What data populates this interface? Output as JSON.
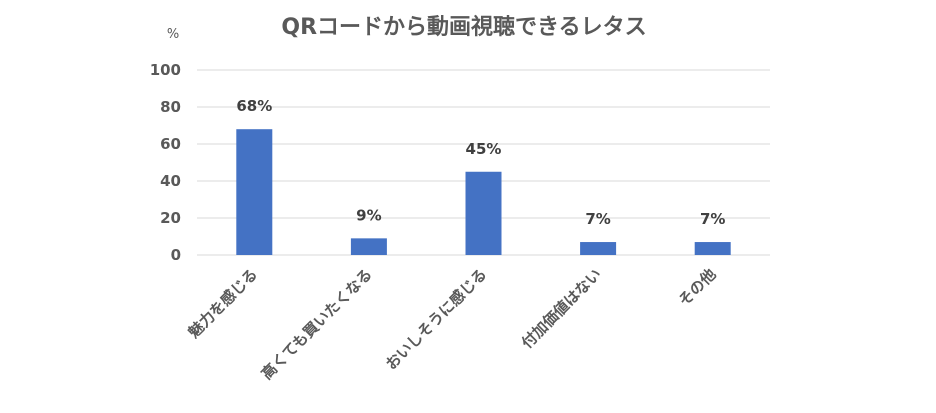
{
  "chart_data": {
    "type": "bar",
    "title": "QRコードから動画視聴できるレタス",
    "ylabel": "%",
    "xlabel": "",
    "ylim": [
      0,
      100
    ],
    "yticks": [
      0,
      20,
      40,
      60,
      80,
      100
    ],
    "grid": true,
    "legend": "none",
    "bar_color": "#4472C4",
    "categories": [
      "魅力を感じる",
      "高くても買いたくなる",
      "おいしそうに感じる",
      "付加価値はない",
      "その他"
    ],
    "values": [
      68,
      9,
      45,
      7,
      7
    ],
    "data_labels": [
      "68%",
      "9%",
      "45%",
      "7%",
      "7%"
    ]
  }
}
